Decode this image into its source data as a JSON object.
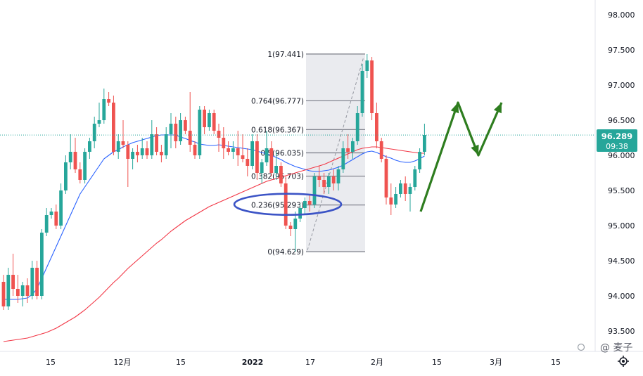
{
  "chart_data": {
    "type": "candlestick",
    "title": "",
    "y_axis": {
      "position": "right",
      "ticks": [
        93.5,
        94.0,
        94.5,
        95.0,
        95.5,
        96.0,
        96.5,
        97.0,
        97.5,
        98.0
      ],
      "tick_labels": [
        "93.500",
        "94.000",
        "94.500",
        "95.000",
        "95.500",
        "96.000",
        "96.500",
        "97.000",
        "97.500",
        "98.000"
      ],
      "ylim": [
        93.2,
        98.2
      ]
    },
    "x_axis": {
      "tick_labels": [
        "15",
        "12月",
        "15",
        "2022",
        "17",
        "2月",
        "15",
        "3月",
        "15"
      ],
      "bold_label": "2022"
    },
    "current_price": {
      "label": "96.289",
      "countdown": "09:38",
      "value": 96.289,
      "color": "#26a69a"
    },
    "colors": {
      "up": "#26a69a",
      "down": "#ef5350",
      "ma_fast": "#2962ff",
      "ma_slow": "#f23645",
      "fib": "#787b86",
      "ellipse": "#3c54c6",
      "arrow": "#2e7d1f"
    },
    "series": [
      {
        "name": "",
        "kind": "candles",
        "values": [
          [
            94.2,
            94.3,
            93.8,
            93.85
          ],
          [
            93.85,
            94.4,
            93.8,
            94.3
          ],
          [
            94.3,
            94.6,
            94.0,
            94.1
          ],
          [
            94.1,
            94.3,
            93.9,
            94.0
          ],
          [
            94.0,
            94.2,
            93.85,
            94.15
          ],
          [
            94.15,
            94.25,
            93.9,
            94.0
          ],
          [
            94.0,
            94.5,
            93.95,
            94.4
          ],
          [
            94.4,
            94.5,
            93.95,
            94.0
          ],
          [
            94.0,
            94.95,
            93.95,
            94.9
          ],
          [
            94.9,
            95.25,
            94.85,
            95.15
          ],
          [
            95.15,
            95.25,
            95.1,
            95.2
          ],
          [
            95.2,
            95.3,
            94.95,
            95.0
          ],
          [
            95.0,
            95.6,
            94.95,
            95.5
          ],
          [
            95.5,
            96.0,
            95.45,
            95.9
          ],
          [
            95.9,
            96.3,
            95.8,
            96.05
          ],
          [
            96.05,
            96.25,
            95.75,
            95.8
          ],
          [
            95.8,
            95.9,
            95.6,
            95.65
          ],
          [
            95.65,
            96.1,
            95.6,
            96.05
          ],
          [
            96.05,
            96.25,
            95.95,
            96.2
          ],
          [
            96.2,
            96.55,
            96.1,
            96.45
          ],
          [
            96.45,
            96.75,
            96.4,
            96.5
          ],
          [
            96.5,
            96.95,
            96.45,
            96.8
          ],
          [
            96.8,
            96.9,
            96.7,
            96.75
          ],
          [
            96.75,
            96.85,
            96.0,
            96.05
          ],
          [
            96.05,
            96.3,
            95.95,
            96.2
          ],
          [
            96.2,
            96.5,
            96.1,
            96.15
          ],
          [
            96.15,
            96.2,
            95.55,
            95.95
          ],
          [
            95.95,
            96.1,
            95.8,
            96.05
          ],
          [
            96.05,
            96.15,
            95.9,
            96.0
          ],
          [
            96.0,
            96.25,
            95.95,
            96.1
          ],
          [
            96.1,
            96.2,
            95.95,
            96.0
          ],
          [
            96.0,
            96.5,
            95.95,
            96.3
          ],
          [
            96.3,
            96.4,
            96.0,
            96.05
          ],
          [
            96.05,
            96.15,
            95.9,
            96.0
          ],
          [
            96.0,
            96.4,
            95.95,
            96.3
          ],
          [
            96.3,
            96.6,
            96.1,
            96.45
          ],
          [
            96.45,
            96.55,
            96.1,
            96.2
          ],
          [
            96.2,
            96.6,
            96.15,
            96.5
          ],
          [
            96.5,
            96.55,
            96.3,
            96.35
          ],
          [
            96.35,
            96.9,
            96.05,
            96.15
          ],
          [
            96.15,
            96.2,
            95.95,
            96.0
          ],
          [
            96.0,
            96.7,
            95.95,
            96.65
          ],
          [
            96.65,
            96.7,
            96.3,
            96.4
          ],
          [
            96.4,
            96.65,
            96.35,
            96.6
          ],
          [
            96.6,
            96.65,
            96.3,
            96.35
          ],
          [
            96.35,
            96.45,
            96.05,
            96.25
          ],
          [
            96.25,
            96.4,
            95.95,
            96.1
          ],
          [
            96.1,
            96.2,
            96.0,
            96.05
          ],
          [
            96.05,
            96.2,
            95.95,
            96.1
          ],
          [
            96.1,
            96.35,
            95.85,
            96.0
          ],
          [
            96.0,
            96.3,
            95.9,
            95.95
          ],
          [
            95.95,
            96.1,
            95.7,
            95.85
          ],
          [
            95.85,
            96.3,
            95.8,
            96.2
          ],
          [
            96.2,
            96.3,
            95.65,
            95.75
          ],
          [
            95.75,
            95.95,
            95.6,
            95.9
          ],
          [
            95.9,
            96.35,
            95.85,
            96.1
          ],
          [
            96.1,
            96.2,
            95.7,
            95.75
          ],
          [
            95.75,
            96.05,
            95.65,
            95.85
          ],
          [
            95.85,
            95.9,
            95.55,
            95.6
          ],
          [
            95.6,
            95.7,
            94.95,
            95.0
          ],
          [
            95.0,
            95.05,
            94.85,
            94.95
          ],
          [
            94.95,
            95.2,
            94.63,
            95.1
          ],
          [
            95.1,
            95.3,
            95.05,
            95.25
          ],
          [
            95.25,
            95.4,
            95.15,
            95.35
          ],
          [
            95.35,
            95.45,
            95.2,
            95.3
          ],
          [
            95.3,
            95.75,
            95.25,
            95.7
          ],
          [
            95.7,
            95.85,
            95.55,
            95.65
          ],
          [
            95.65,
            95.75,
            95.45,
            95.55
          ],
          [
            95.55,
            95.75,
            95.45,
            95.7
          ],
          [
            95.7,
            95.8,
            95.5,
            95.6
          ],
          [
            95.6,
            95.85,
            95.5,
            95.8
          ],
          [
            95.8,
            96.2,
            95.75,
            96.1
          ],
          [
            96.1,
            96.3,
            95.95,
            96.05
          ],
          [
            96.05,
            96.25,
            95.95,
            96.2
          ],
          [
            96.2,
            96.7,
            96.15,
            96.6
          ],
          [
            96.6,
            97.3,
            96.55,
            97.2
          ],
          [
            97.2,
            97.44,
            97.1,
            97.35
          ],
          [
            97.35,
            97.4,
            96.5,
            96.6
          ],
          [
            96.6,
            96.75,
            96.1,
            96.2
          ],
          [
            96.2,
            96.25,
            95.9,
            95.95
          ],
          [
            95.95,
            96.0,
            95.3,
            95.4
          ],
          [
            95.4,
            95.6,
            95.15,
            95.3
          ],
          [
            95.3,
            95.55,
            95.25,
            95.45
          ],
          [
            95.45,
            95.65,
            95.4,
            95.6
          ],
          [
            95.6,
            95.7,
            95.35,
            95.45
          ],
          [
            95.45,
            95.6,
            95.2,
            95.55
          ],
          [
            95.55,
            95.85,
            95.5,
            95.8
          ],
          [
            95.8,
            96.1,
            95.75,
            96.05
          ],
          [
            96.05,
            96.45,
            96.0,
            96.29
          ]
        ]
      },
      {
        "name": "",
        "kind": "ma_fast",
        "values": [
          93.95,
          93.95,
          93.95,
          93.95,
          93.96,
          93.97,
          94.02,
          94.1,
          94.25,
          94.4,
          94.55,
          94.7,
          94.85,
          95.0,
          95.15,
          95.3,
          95.45,
          95.55,
          95.65,
          95.75,
          95.85,
          95.95,
          96.0,
          96.05,
          96.08,
          96.12,
          96.15,
          96.18,
          96.2,
          96.22,
          96.24,
          96.26,
          96.28,
          96.29,
          96.29,
          96.29,
          96.29,
          96.26,
          96.24,
          96.21,
          96.19,
          96.16,
          96.15,
          96.14,
          96.14,
          96.15,
          96.14,
          96.13,
          96.12,
          96.11,
          96.1,
          96.09,
          96.08,
          96.06,
          96.04,
          96.02,
          96.0,
          95.97,
          95.94,
          95.9,
          95.87,
          95.84,
          95.82,
          95.8,
          95.78,
          95.77,
          95.77,
          95.78,
          95.79,
          95.81,
          95.83,
          95.86,
          95.9,
          95.94,
          95.98,
          96.02,
          96.05,
          96.06,
          96.04,
          96.01,
          95.98,
          95.96,
          95.93,
          95.91,
          95.9,
          95.9,
          95.92,
          95.95,
          95.99
        ]
      },
      {
        "name": "",
        "kind": "ma_slow",
        "values": [
          93.35,
          93.36,
          93.37,
          93.38,
          93.39,
          93.4,
          93.42,
          93.44,
          93.46,
          93.48,
          93.51,
          93.54,
          93.58,
          93.62,
          93.66,
          93.7,
          93.75,
          93.8,
          93.86,
          93.92,
          93.98,
          94.05,
          94.12,
          94.19,
          94.25,
          94.32,
          94.39,
          94.45,
          94.51,
          94.57,
          94.63,
          94.69,
          94.75,
          94.8,
          94.86,
          94.92,
          94.97,
          95.02,
          95.07,
          95.11,
          95.15,
          95.19,
          95.23,
          95.27,
          95.3,
          95.33,
          95.36,
          95.39,
          95.42,
          95.45,
          95.48,
          95.51,
          95.54,
          95.57,
          95.6,
          95.63,
          95.65,
          95.67,
          95.69,
          95.71,
          95.73,
          95.75,
          95.77,
          95.79,
          95.81,
          95.83,
          95.85,
          95.87,
          95.9,
          95.93,
          95.96,
          95.99,
          96.02,
          96.05,
          96.08,
          96.1,
          96.11,
          96.12,
          96.12,
          96.11,
          96.1,
          96.09,
          96.08,
          96.07,
          96.06,
          96.05,
          96.04,
          96.03,
          96.03
        ]
      }
    ],
    "fibonacci": {
      "levels": [
        {
          "label": "1(97.441)",
          "value": 97.441
        },
        {
          "label": "0.764(96.777)",
          "value": 96.777
        },
        {
          "label": "0.618(96.367)",
          "value": 96.367
        },
        {
          "label": "0.5(96.035)",
          "value": 96.035
        },
        {
          "label": "0.382(95.703)",
          "value": 95.703
        },
        {
          "label": "0.236(95.293)",
          "value": 95.293
        },
        {
          "label": "0(94.629)",
          "value": 94.629
        }
      ]
    },
    "annotations": {
      "ellipse_around_level": "0.236(95.293)",
      "projection_arrow_prices": [
        95.2,
        96.75,
        96.0,
        96.75
      ]
    },
    "watermark": "@ 麦子",
    "grid": false
  }
}
